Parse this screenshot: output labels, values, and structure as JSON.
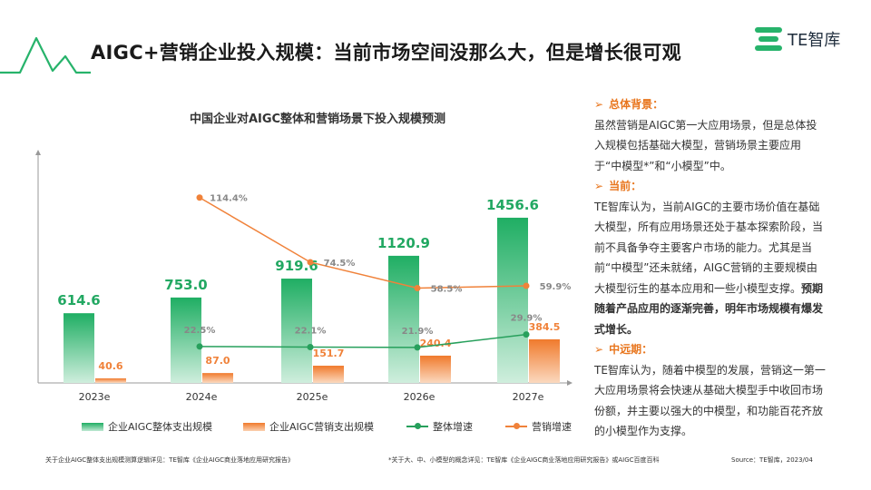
{
  "header": {
    "title": "AIGC+营销企业投入规模：当前市场空间没那么大，但是增长很可观",
    "brand": "TE智库",
    "accent_color": "#27b36b",
    "brand_icon": "te-logo-icon"
  },
  "chart_data": {
    "type": "bar",
    "title": "中国企业对AIGC整体和营销场景下投入规模预测",
    "categories": [
      "2023e",
      "2024e",
      "2025e",
      "2026e",
      "2027e"
    ],
    "series": [
      {
        "name": "企业AIGC整体支出规模",
        "kind": "bar",
        "axis": "left",
        "color": "#27b36b",
        "values": [
          614.6,
          753.0,
          919.6,
          1120.9,
          1456.6
        ],
        "labels": [
          "614.6",
          "753.0",
          "919.6",
          "1120.9",
          "1456.6"
        ]
      },
      {
        "name": "企业AIGC营销支出规模",
        "kind": "bar",
        "axis": "left",
        "color": "#f0823a",
        "values": [
          40.6,
          87.0,
          151.7,
          240.4,
          384.5
        ],
        "labels": [
          "40.6",
          "87.0",
          "151.7",
          "240.4",
          "384.5"
        ]
      },
      {
        "name": "整体增速",
        "kind": "line",
        "axis": "right",
        "color": "#27a05c",
        "values": [
          null,
          22.5,
          22.1,
          21.9,
          29.9
        ],
        "labels": [
          "",
          "22.5%",
          "22.1%",
          "21.9%",
          "29.9%"
        ]
      },
      {
        "name": "营销增速",
        "kind": "line",
        "axis": "right",
        "color": "#f0823a",
        "values": [
          null,
          114.4,
          74.5,
          58.5,
          59.9
        ],
        "labels": [
          "",
          "114.4%",
          "74.5%",
          "58.5%",
          "59.9%"
        ]
      }
    ],
    "ylim": [
      0,
      2000
    ],
    "y2lim": [
      0,
      140
    ],
    "grid": false,
    "legend": "bottom"
  },
  "commentary": {
    "background_heading": "总体背景：",
    "background_text": "虽然营销是AIGC第一大应用场景，但是总体投入规模包括基础大模型，营销场景主要应用于“中模型*”和“小模型”中。",
    "current_heading": "当前：",
    "current_text": "TE智库认为，当前AIGC的主要市场价值在基础大模型，所有应用场景还处于基本探索阶段，当前不具备争夺主要客户市场的能力。尤其是当前“中模型”还未就绪，AIGC营销的主要规模由大模型衍生的基本应用和一些小模型支撑。",
    "current_bold": "预期随着产品应用的逐渐完善，明年市场规模有爆发式增长。",
    "mid_heading": "中远期：",
    "mid_text": "TE智库认为，随着中模型的发展，营销这一第一大应用场景将会快速从基础大模型手中收回市场份额，并主要以强大的中模型，和功能百花齐放的小模型作为支撑。"
  },
  "footer": {
    "note_left": "关于企业AIGC整体支出规模测算逻辑详见：TE智库《企业AIGC商业落地应用研究报告》",
    "note_mid": "*关于大、中、小模型的概念详见：TE智库《企业AIGC商业落地应用研究报告》或AIGC百度百科",
    "source": "Source：TE智库，2023/04"
  }
}
